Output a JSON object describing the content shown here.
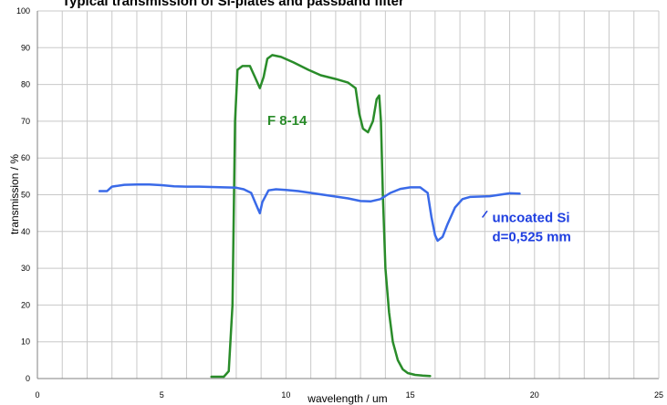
{
  "chart_data": {
    "type": "line",
    "title": "Typical transmission of Si-plates and passband filter",
    "xlabel": "wavelength / um",
    "ylabel": "transmission / %",
    "xlim": [
      0,
      25
    ],
    "ylim": [
      0,
      100
    ],
    "xticks": [
      "0",
      "5",
      "10",
      "15",
      "20",
      "25"
    ],
    "yticks": [
      "0",
      "10",
      "20",
      "30",
      "40",
      "50",
      "60",
      "70",
      "80",
      "90",
      "100"
    ],
    "grid": true,
    "legend": "none",
    "series": [
      {
        "name": "F 8-14",
        "color": "#2a8c2a",
        "x": [
          7.0,
          7.5,
          7.7,
          7.85,
          7.95,
          8.05,
          8.25,
          8.55,
          8.75,
          8.95,
          9.1,
          9.25,
          9.45,
          9.8,
          10.3,
          10.9,
          11.4,
          12.0,
          12.5,
          12.8,
          12.95,
          13.1,
          13.3,
          13.5,
          13.65,
          13.75,
          13.82,
          13.9,
          14.0,
          14.15,
          14.3,
          14.5,
          14.7,
          14.9,
          15.2,
          15.5,
          15.8
        ],
        "y": [
          0.5,
          0.5,
          2,
          20,
          70,
          84,
          85,
          85,
          82,
          79,
          82,
          87,
          88,
          87.5,
          86,
          84,
          82.5,
          81.5,
          80.5,
          79,
          72,
          68,
          67,
          70,
          76,
          77,
          70,
          50,
          30,
          18,
          10,
          5,
          2.5,
          1.5,
          1,
          0.8,
          0.7
        ]
      },
      {
        "name": "uncoated Si d=0,525 mm",
        "color": "#3a6ae8",
        "x": [
          2.5,
          2.8,
          3.0,
          3.5,
          4.0,
          4.5,
          5.0,
          5.5,
          6.0,
          6.5,
          7.0,
          7.5,
          8.0,
          8.3,
          8.6,
          8.85,
          8.95,
          9.05,
          9.3,
          9.6,
          10.0,
          10.5,
          11.0,
          11.5,
          12.0,
          12.5,
          13.0,
          13.4,
          13.8,
          14.2,
          14.6,
          15.0,
          15.4,
          15.7,
          15.85,
          16.0,
          16.1,
          16.3,
          16.5,
          16.8,
          17.1,
          17.4,
          17.8,
          18.2,
          18.6,
          19.0,
          19.4
        ],
        "y": [
          51,
          51,
          52.2,
          52.7,
          52.8,
          52.8,
          52.6,
          52.3,
          52.2,
          52.2,
          52.1,
          52.0,
          51.9,
          51.5,
          50.5,
          46.5,
          45,
          48,
          51.2,
          51.5,
          51.3,
          51.0,
          50.5,
          50.0,
          49.5,
          49.0,
          48.3,
          48.2,
          48.8,
          50.5,
          51.6,
          52.0,
          52.0,
          50.5,
          44,
          39,
          37.5,
          38.5,
          42,
          46.5,
          48.8,
          49.4,
          49.5,
          49.6,
          50.0,
          50.4,
          50.3
        ]
      }
    ],
    "annotations": [
      {
        "id": "filter",
        "text": "F 8-14",
        "color": "#2a8c2a",
        "x": 9.25,
        "y": 69
      },
      {
        "id": "si1",
        "text": "uncoated Si",
        "color": "#1f3fe0",
        "x": 18.3,
        "y": 42.5
      },
      {
        "id": "si2",
        "text": "d=0,525 mm",
        "color": "#1f3fe0",
        "x": 18.3,
        "y": 37.3
      }
    ],
    "leader_line": {
      "from": [
        17.9,
        43.8
      ],
      "to": [
        18.1,
        45.6
      ],
      "color": "#1f3fe0"
    }
  }
}
